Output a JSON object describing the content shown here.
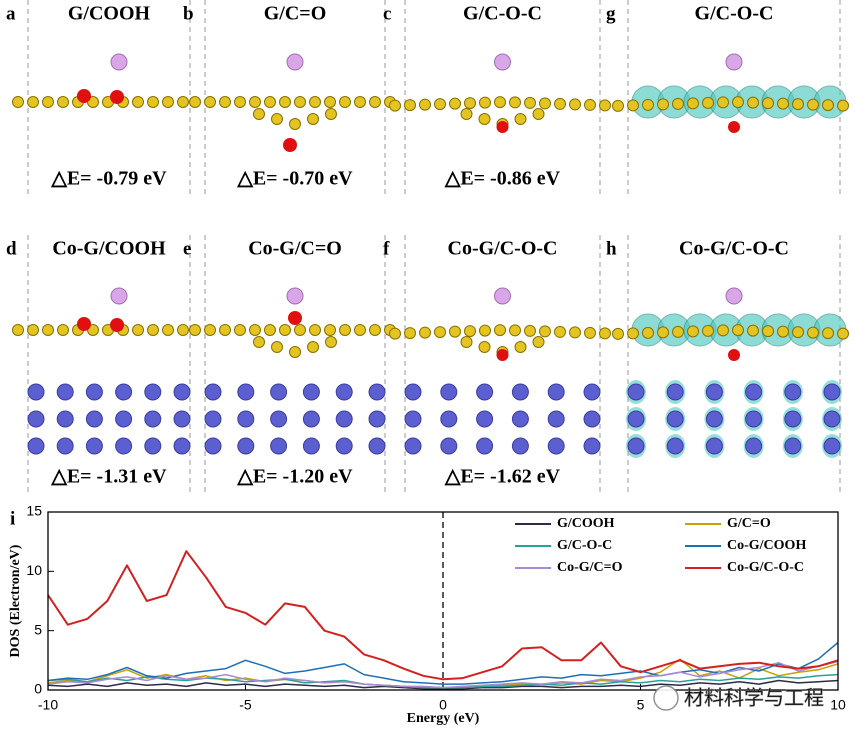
{
  "panels": [
    {
      "label": "a",
      "title": "G/COOH",
      "energy": "△E= -0.79 eV"
    },
    {
      "label": "b",
      "title": "G/C=O",
      "energy": "△E= -0.70 eV"
    },
    {
      "label": "c",
      "title": "G/C-O-C",
      "energy": "△E= -0.86 eV"
    },
    {
      "label": "g",
      "title": "G/C-O-C"
    },
    {
      "label": "d",
      "title": "Co-G/COOH",
      "energy": "△E= -1.31 eV"
    },
    {
      "label": "e",
      "title": "Co-G/C=O",
      "energy": "△E= -1.20 eV"
    },
    {
      "label": "f",
      "title": "Co-G/C-O-C",
      "energy": "△E= -1.62 eV"
    },
    {
      "label": "h",
      "title": "Co-G/C-O-C"
    }
  ],
  "watermark": "材料科学与工程",
  "chart_data": {
    "type": "line",
    "panel_label": "i",
    "x_label": "Energy (eV)",
    "y_label": "DOS (Electron/eV)",
    "xlim": [
      -10,
      10
    ],
    "ylim": [
      0,
      15
    ],
    "xticks": [
      -10,
      -5,
      0,
      5,
      10
    ],
    "yticks": [
      0,
      5,
      10,
      15
    ],
    "vline": 0,
    "legend": "upper right",
    "x": [
      -10,
      -9.5,
      -9,
      -8.5,
      -8,
      -7.5,
      -7,
      -6.5,
      -6,
      -5.5,
      -5,
      -4.5,
      -4,
      -3.5,
      -3,
      -2.5,
      -2,
      -1.5,
      -1,
      -0.5,
      0,
      0.5,
      1,
      1.5,
      2,
      2.5,
      3,
      3.5,
      4,
      4.5,
      5,
      5.5,
      6,
      6.5,
      7,
      7.5,
      8,
      8.5,
      9,
      9.5,
      10
    ],
    "series": [
      {
        "name": "G/COOH",
        "color": "#2b2b4a",
        "values": [
          0.4,
          0.3,
          0.5,
          0.3,
          0.6,
          0.4,
          0.5,
          0.3,
          0.6,
          0.4,
          0.5,
          0.3,
          0.5,
          0.4,
          0.3,
          0.4,
          0.2,
          0.3,
          0.2,
          0.1,
          0.1,
          0.1,
          0.2,
          0.2,
          0.3,
          0.3,
          0.2,
          0.3,
          0.3,
          0.4,
          0.3,
          0.5,
          0.4,
          0.6,
          0.5,
          0.7,
          0.5,
          0.8,
          0.6,
          0.7,
          0.8
        ]
      },
      {
        "name": "G/C=O",
        "color": "#c8a000",
        "values": [
          0.6,
          0.8,
          0.7,
          1.2,
          1.7,
          1.0,
          1.3,
          0.9,
          1.2,
          0.8,
          1.0,
          0.7,
          0.9,
          0.8,
          0.6,
          0.7,
          0.5,
          0.4,
          0.3,
          0.2,
          0.2,
          0.2,
          0.3,
          0.4,
          0.5,
          0.4,
          0.6,
          0.5,
          0.8,
          0.7,
          1.0,
          1.5,
          2.6,
          1.2,
          1.6,
          1.0,
          1.8,
          1.2,
          1.5,
          1.7,
          2.2
        ]
      },
      {
        "name": "G/C-O-C",
        "color": "#2aa198",
        "values": [
          0.8,
          0.9,
          0.7,
          1.0,
          0.8,
          1.1,
          0.9,
          0.8,
          1.0,
          0.9,
          0.7,
          0.8,
          0.9,
          0.6,
          0.7,
          0.8,
          0.5,
          0.4,
          0.3,
          0.2,
          0.2,
          0.2,
          0.3,
          0.3,
          0.4,
          0.5,
          0.4,
          0.6,
          0.5,
          0.7,
          0.6,
          0.8,
          0.7,
          0.9,
          0.8,
          1.0,
          0.9,
          1.1,
          1.0,
          1.2,
          1.3
        ]
      },
      {
        "name": "Co-G/COOH",
        "color": "#1f6fb5",
        "values": [
          0.8,
          1.0,
          0.9,
          1.3,
          1.9,
          1.2,
          1.0,
          1.4,
          1.6,
          1.8,
          2.5,
          2.0,
          1.4,
          1.6,
          1.9,
          2.2,
          1.3,
          1.0,
          0.7,
          0.6,
          0.5,
          0.5,
          0.6,
          0.7,
          0.9,
          1.1,
          1.0,
          1.3,
          1.2,
          1.4,
          1.6,
          1.2,
          1.5,
          1.7,
          1.4,
          1.9,
          1.6,
          2.2,
          1.8,
          2.6,
          4.0
        ]
      },
      {
        "name": "Co-G/C=O",
        "color": "#a98ad6",
        "values": [
          0.5,
          0.7,
          0.6,
          0.9,
          1.1,
          0.8,
          1.2,
          0.9,
          1.0,
          1.3,
          0.9,
          0.7,
          1.0,
          0.8,
          0.6,
          0.7,
          0.5,
          0.4,
          0.3,
          0.3,
          0.2,
          0.3,
          0.4,
          0.5,
          0.6,
          0.5,
          0.7,
          0.6,
          0.9,
          0.8,
          1.1,
          1.2,
          1.5,
          1.1,
          1.4,
          1.7,
          1.9,
          2.3,
          1.6,
          2.0,
          2.4
        ]
      },
      {
        "name": "Co-G/C-O-C",
        "color": "#d42020",
        "values": [
          8.0,
          5.5,
          6.0,
          7.5,
          10.5,
          7.5,
          8.0,
          11.7,
          9.5,
          7.0,
          6.5,
          5.5,
          7.3,
          7.0,
          5.0,
          4.5,
          3.0,
          2.5,
          1.8,
          1.2,
          0.9,
          1.0,
          1.5,
          2.0,
          3.5,
          3.6,
          2.5,
          2.5,
          4.0,
          2.0,
          1.5,
          2.0,
          2.5,
          1.8,
          2.0,
          2.2,
          2.3,
          2.0,
          1.8,
          2.0,
          2.5
        ]
      }
    ]
  }
}
